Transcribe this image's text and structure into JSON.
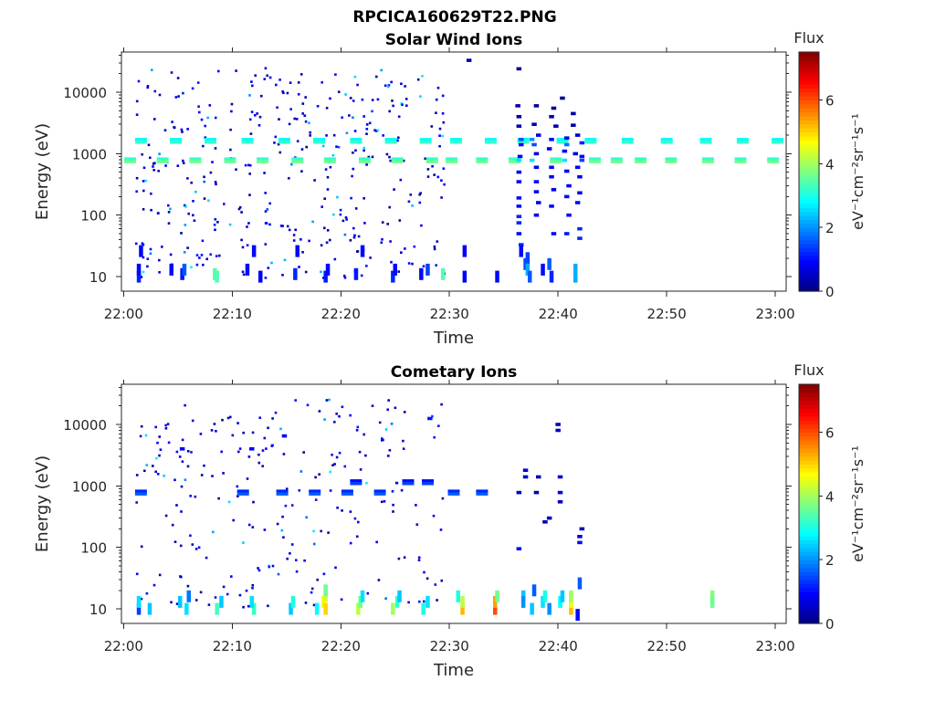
{
  "figure_title": "RPCICA160629T22.PNG",
  "colormap": {
    "stops": [
      "#00007f",
      "#0000ff",
      "#007fff",
      "#00ffff",
      "#7fff7f",
      "#ffff00",
      "#ff7f00",
      "#ff0000",
      "#7f0000"
    ]
  },
  "chart_data": [
    {
      "type": "heatmap",
      "title": "Solar Wind Ions",
      "xlabel": "Time",
      "ylabel": "Energy (eV)",
      "x_ticks": [
        "22:00",
        "22:10",
        "22:20",
        "22:30",
        "22:40",
        "22:50",
        "23:00"
      ],
      "x_tick_minutes": [
        0,
        10,
        20,
        30,
        40,
        50,
        60
      ],
      "xlim_minutes": [
        -0.2,
        61.0
      ],
      "y_scale": "log",
      "y_ticks": [
        "10",
        "100",
        "1000",
        "10000"
      ],
      "y_tick_values": [
        10,
        100,
        1000,
        10000
      ],
      "ylim": [
        5.8,
        45000
      ],
      "colorbar": {
        "title": "Flux",
        "label": "eV⁻¹cm⁻²sr⁻¹s⁻¹",
        "ticks": [
          "0",
          "2",
          "4",
          "6"
        ],
        "tick_values": [
          0,
          2,
          4,
          6
        ],
        "range": [
          0,
          7.5
        ]
      },
      "cells": [
        {
          "t": 1.4,
          "e": 10,
          "v": 1.2
        },
        {
          "t": 1.4,
          "e": 13,
          "v": 1.0
        },
        {
          "t": 1.6,
          "e": 26,
          "v": 0.9
        },
        {
          "t": 4.4,
          "e": 13,
          "v": 1.0
        },
        {
          "t": 5.4,
          "e": 11,
          "v": 1.1
        },
        {
          "t": 5.6,
          "e": 13,
          "v": 1.6
        },
        {
          "t": 8.4,
          "e": 11,
          "v": 3.4
        },
        {
          "t": 8.6,
          "e": 10,
          "v": 3.4
        },
        {
          "t": 11.4,
          "e": 13,
          "v": 1.0
        },
        {
          "t": 12.0,
          "e": 26,
          "v": 1.0
        },
        {
          "t": 12.6,
          "e": 10,
          "v": 0.9
        },
        {
          "t": 15.8,
          "e": 11,
          "v": 1.2
        },
        {
          "t": 16.0,
          "e": 26,
          "v": 0.9
        },
        {
          "t": 18.6,
          "e": 10,
          "v": 1.1
        },
        {
          "t": 18.8,
          "e": 13,
          "v": 1.0
        },
        {
          "t": 21.4,
          "e": 11,
          "v": 1.1
        },
        {
          "t": 22.0,
          "e": 26,
          "v": 1.0
        },
        {
          "t": 24.8,
          "e": 10,
          "v": 1.2
        },
        {
          "t": 25.0,
          "e": 13,
          "v": 1.0
        },
        {
          "t": 27.4,
          "e": 11,
          "v": 1.0
        },
        {
          "t": 28.0,
          "e": 13,
          "v": 1.4
        },
        {
          "t": 29.4,
          "e": 11,
          "v": 3.4
        },
        {
          "t": 31.4,
          "e": 10,
          "v": 0.9
        },
        {
          "t": 31.4,
          "e": 26,
          "v": 0.9
        },
        {
          "t": 34.4,
          "e": 10,
          "v": 1.0
        },
        {
          "t": 31.8,
          "e": 33000,
          "v": 0.3
        },
        {
          "t": 36.4,
          "e": 24000,
          "v": 0.2
        },
        {
          "t": 36.3,
          "e": 6000,
          "v": 0.3
        },
        {
          "t": 36.4,
          "e": 4000,
          "v": 0.3
        },
        {
          "t": 36.4,
          "e": 2800,
          "v": 0.4
        },
        {
          "t": 36.6,
          "e": 1700,
          "v": 1.5
        },
        {
          "t": 36.6,
          "e": 1400,
          "v": 1.0
        },
        {
          "t": 36.5,
          "e": 900,
          "v": 1.0
        },
        {
          "t": 36.4,
          "e": 780,
          "v": 2.6
        },
        {
          "t": 36.4,
          "e": 500,
          "v": 0.8
        },
        {
          "t": 36.4,
          "e": 350,
          "v": 0.9
        },
        {
          "t": 36.4,
          "e": 190,
          "v": 1.0
        },
        {
          "t": 36.4,
          "e": 140,
          "v": 1.0
        },
        {
          "t": 36.4,
          "e": 95,
          "v": 1.2
        },
        {
          "t": 36.4,
          "e": 75,
          "v": 1.2
        },
        {
          "t": 36.4,
          "e": 50,
          "v": 1.0
        },
        {
          "t": 36.6,
          "e": 33,
          "v": 1.2
        },
        {
          "t": 36.6,
          "e": 26,
          "v": 1.0
        },
        {
          "t": 37.2,
          "e": 20,
          "v": 1.4
        },
        {
          "t": 37.0,
          "e": 16,
          "v": 1.5
        },
        {
          "t": 37.2,
          "e": 13,
          "v": 2.2
        },
        {
          "t": 37.4,
          "e": 10,
          "v": 1.6
        },
        {
          "t": 37.6,
          "e": 1700,
          "v": 2.0
        },
        {
          "t": 37.8,
          "e": 1400,
          "v": 1.5
        },
        {
          "t": 37.6,
          "e": 780,
          "v": 2.6
        },
        {
          "t": 38.0,
          "e": 6000,
          "v": 0.2
        },
        {
          "t": 37.8,
          "e": 3000,
          "v": 0.3
        },
        {
          "t": 38.2,
          "e": 2000,
          "v": 0.8
        },
        {
          "t": 38.0,
          "e": 1000,
          "v": 0.6
        },
        {
          "t": 38.0,
          "e": 600,
          "v": 0.8
        },
        {
          "t": 38.0,
          "e": 350,
          "v": 0.9
        },
        {
          "t": 38.0,
          "e": 240,
          "v": 0.8
        },
        {
          "t": 38.2,
          "e": 160,
          "v": 0.9
        },
        {
          "t": 38.0,
          "e": 100,
          "v": 0.9
        },
        {
          "t": 39.6,
          "e": 5500,
          "v": 0.2
        },
        {
          "t": 39.4,
          "e": 4000,
          "v": 0.4
        },
        {
          "t": 39.8,
          "e": 2800,
          "v": 0.3
        },
        {
          "t": 39.4,
          "e": 1700,
          "v": 1.0
        },
        {
          "t": 39.2,
          "e": 1200,
          "v": 0.8
        },
        {
          "t": 39.4,
          "e": 600,
          "v": 1.0
        },
        {
          "t": 39.4,
          "e": 420,
          "v": 1.0
        },
        {
          "t": 39.6,
          "e": 260,
          "v": 0.8
        },
        {
          "t": 39.4,
          "e": 140,
          "v": 1.0
        },
        {
          "t": 39.6,
          "e": 50,
          "v": 0.9
        },
        {
          "t": 39.2,
          "e": 16,
          "v": 1.6
        },
        {
          "t": 39.4,
          "e": 10,
          "v": 1.2
        },
        {
          "t": 38.6,
          "e": 13,
          "v": 1.0
        },
        {
          "t": 40.4,
          "e": 8000,
          "v": 0.2
        },
        {
          "t": 40.8,
          "e": 1800,
          "v": 0.8
        },
        {
          "t": 40.8,
          "e": 1400,
          "v": 1.8
        },
        {
          "t": 40.6,
          "e": 1100,
          "v": 0.9
        },
        {
          "t": 40.6,
          "e": 780,
          "v": 2.6
        },
        {
          "t": 40.8,
          "e": 520,
          "v": 0.9
        },
        {
          "t": 41.0,
          "e": 300,
          "v": 0.8
        },
        {
          "t": 40.8,
          "e": 200,
          "v": 1.0
        },
        {
          "t": 41.0,
          "e": 100,
          "v": 1.0
        },
        {
          "t": 40.8,
          "e": 50,
          "v": 1.1
        },
        {
          "t": 41.6,
          "e": 13,
          "v": 2.2
        },
        {
          "t": 41.6,
          "e": 10,
          "v": 2.2
        },
        {
          "t": 41.4,
          "e": 4500,
          "v": 0.3
        },
        {
          "t": 41.4,
          "e": 2900,
          "v": 0.3
        },
        {
          "t": 41.8,
          "e": 2000,
          "v": 0.4
        },
        {
          "t": 41.6,
          "e": 1000,
          "v": 0.7
        },
        {
          "t": 41.8,
          "e": 600,
          "v": 0.9
        },
        {
          "t": 42.0,
          "e": 420,
          "v": 0.8
        },
        {
          "t": 42.0,
          "e": 230,
          "v": 0.8
        },
        {
          "t": 41.8,
          "e": 160,
          "v": 1.0
        },
        {
          "t": 42.0,
          "e": 60,
          "v": 1.2
        },
        {
          "t": 42.0,
          "e": 42,
          "v": 1.2
        },
        {
          "t": 42.2,
          "e": 1500,
          "v": 1.2
        },
        {
          "t": 42.2,
          "e": 900,
          "v": 1.0
        },
        {
          "t": 42.2,
          "e": 780,
          "v": 1.4
        }
      ],
      "bands": [
        {
          "e": 1620,
          "v": 2.8,
          "times": [
            1.6,
            4.8,
            8.0,
            11.4,
            14.8,
            18.0,
            21.4,
            24.6,
            27.8,
            30.6,
            33.8,
            36.8,
            40.4,
            43.0,
            46.4,
            50.0,
            53.6,
            57.0,
            60.2
          ]
        },
        {
          "e": 780,
          "v": 3.2,
          "times": [
            0.6,
            3.6,
            6.6,
            9.8,
            12.8,
            16.0,
            19.0,
            22.2,
            25.2,
            28.4,
            30.2,
            33.0,
            36.0,
            39.8,
            43.4,
            45.4,
            47.6,
            50.4,
            53.8,
            56.8,
            59.8
          ]
        }
      ],
      "scatter_seed": 17,
      "scatter_count": 380,
      "scatter_range_minutes": [
        1.0,
        29.6
      ]
    },
    {
      "type": "heatmap",
      "title": "Cometary Ions",
      "xlabel": "Time",
      "ylabel": "Energy (eV)",
      "x_ticks": [
        "22:00",
        "22:10",
        "22:20",
        "22:30",
        "22:40",
        "22:50",
        "23:00"
      ],
      "x_tick_minutes": [
        0,
        10,
        20,
        30,
        40,
        50,
        60
      ],
      "xlim_minutes": [
        -0.2,
        61.0
      ],
      "y_scale": "log",
      "y_ticks": [
        "10",
        "100",
        "1000",
        "10000"
      ],
      "y_tick_values": [
        10,
        100,
        1000,
        10000
      ],
      "ylim": [
        5.8,
        45000
      ],
      "colorbar": {
        "title": "Flux",
        "label": "eV⁻¹cm⁻²sr⁻¹s⁻¹",
        "ticks": [
          "0",
          "2",
          "4",
          "6"
        ],
        "tick_values": [
          0,
          2,
          4,
          6
        ],
        "range": [
          0,
          7.5
        ]
      },
      "cells": [
        {
          "t": 1.4,
          "e": 10,
          "v": 1.4
        },
        {
          "t": 1.4,
          "e": 13,
          "v": 2.6
        },
        {
          "t": 2.4,
          "e": 10,
          "v": 2.4
        },
        {
          "t": 5.2,
          "e": 13,
          "v": 2.4
        },
        {
          "t": 5.8,
          "e": 10,
          "v": 2.6
        },
        {
          "t": 6.0,
          "e": 16,
          "v": 1.8
        },
        {
          "t": 8.6,
          "e": 10,
          "v": 3.3
        },
        {
          "t": 9.0,
          "e": 13,
          "v": 2.4
        },
        {
          "t": 12.0,
          "e": 10,
          "v": 3.2
        },
        {
          "t": 11.8,
          "e": 13,
          "v": 2.6
        },
        {
          "t": 15.4,
          "e": 10,
          "v": 2.4
        },
        {
          "t": 15.6,
          "e": 13,
          "v": 3.0
        },
        {
          "t": 17.8,
          "e": 10,
          "v": 2.8
        },
        {
          "t": 18.4,
          "e": 13,
          "v": 4.6
        },
        {
          "t": 18.6,
          "e": 10,
          "v": 5.0
        },
        {
          "t": 18.6,
          "e": 16,
          "v": 4.4
        },
        {
          "t": 18.6,
          "e": 20,
          "v": 3.6
        },
        {
          "t": 21.6,
          "e": 10,
          "v": 4.2
        },
        {
          "t": 21.8,
          "e": 13,
          "v": 3.6
        },
        {
          "t": 22.0,
          "e": 16,
          "v": 2.6
        },
        {
          "t": 24.8,
          "e": 10,
          "v": 4.0
        },
        {
          "t": 25.2,
          "e": 13,
          "v": 3.2
        },
        {
          "t": 25.4,
          "e": 16,
          "v": 2.4
        },
        {
          "t": 27.6,
          "e": 10,
          "v": 3.0
        },
        {
          "t": 28.0,
          "e": 13,
          "v": 2.6
        },
        {
          "t": 31.2,
          "e": 10,
          "v": 5.2
        },
        {
          "t": 31.2,
          "e": 13,
          "v": 4.2
        },
        {
          "t": 30.8,
          "e": 16,
          "v": 3.0
        },
        {
          "t": 34.2,
          "e": 10,
          "v": 6.0
        },
        {
          "t": 34.2,
          "e": 13,
          "v": 5.4
        },
        {
          "t": 34.4,
          "e": 16,
          "v": 3.6
        },
        {
          "t": 36.8,
          "e": 16,
          "v": 2.4
        },
        {
          "t": 36.8,
          "e": 13,
          "v": 2.0
        },
        {
          "t": 37.6,
          "e": 10,
          "v": 2.4
        },
        {
          "t": 37.8,
          "e": 20,
          "v": 1.6
        },
        {
          "t": 38.6,
          "e": 13,
          "v": 2.6
        },
        {
          "t": 38.8,
          "e": 16,
          "v": 3.0
        },
        {
          "t": 39.2,
          "e": 10,
          "v": 2.0
        },
        {
          "t": 40.2,
          "e": 13,
          "v": 2.8
        },
        {
          "t": 40.4,
          "e": 16,
          "v": 2.4
        },
        {
          "t": 41.2,
          "e": 10,
          "v": 5.2
        },
        {
          "t": 41.2,
          "e": 13,
          "v": 4.6
        },
        {
          "t": 41.2,
          "e": 16,
          "v": 4.0
        },
        {
          "t": 41.8,
          "e": 8,
          "v": 1.0
        },
        {
          "t": 42.0,
          "e": 26,
          "v": 1.6
        },
        {
          "t": 36.4,
          "e": 95,
          "v": 1.0
        },
        {
          "t": 36.4,
          "e": 780,
          "v": 0.5
        },
        {
          "t": 37.0,
          "e": 1400,
          "v": 0.6
        },
        {
          "t": 37.0,
          "e": 1800,
          "v": 0.6
        },
        {
          "t": 38.0,
          "e": 780,
          "v": 0.3
        },
        {
          "t": 38.2,
          "e": 1400,
          "v": 0.4
        },
        {
          "t": 38.8,
          "e": 260,
          "v": 0.4
        },
        {
          "t": 39.2,
          "e": 300,
          "v": 0.4
        },
        {
          "t": 40.0,
          "e": 10000,
          "v": 0.4
        },
        {
          "t": 40.0,
          "e": 8000,
          "v": 0.5
        },
        {
          "t": 40.2,
          "e": 1400,
          "v": 0.7
        },
        {
          "t": 40.2,
          "e": 780,
          "v": 0.8
        },
        {
          "t": 40.2,
          "e": 550,
          "v": 0.5
        },
        {
          "t": 42.0,
          "e": 150,
          "v": 0.6
        },
        {
          "t": 42.0,
          "e": 120,
          "v": 1.0
        },
        {
          "t": 42.2,
          "e": 200,
          "v": 0.5
        },
        {
          "t": 54.2,
          "e": 16,
          "v": 3.8
        },
        {
          "t": 54.2,
          "e": 13,
          "v": 3.6
        },
        {
          "t": 28.2,
          "e": 12500,
          "v": 1.1
        },
        {
          "t": 14.8,
          "e": 6500,
          "v": 1.0
        },
        {
          "t": 11.8,
          "e": 4000,
          "v": 0.9
        },
        {
          "t": 5.4,
          "e": 4000,
          "v": 0.9
        }
      ],
      "bands": [
        {
          "e": 780,
          "v": 1.2,
          "times": [
            1.6,
            11.0,
            14.6,
            17.6,
            20.6,
            23.6,
            30.4,
            33.0
          ]
        },
        {
          "e": 1150,
          "v": 1.0,
          "times": [
            21.4,
            26.2,
            28.0
          ]
        }
      ],
      "scatter_seed": 91,
      "scatter_count": 240,
      "scatter_range_minutes": [
        1.0,
        29.6
      ]
    }
  ]
}
